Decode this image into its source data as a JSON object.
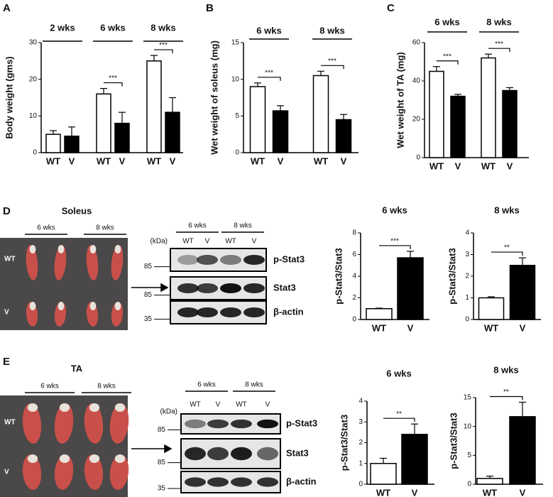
{
  "figure": {
    "panels": [
      "A",
      "B",
      "C",
      "D",
      "E"
    ],
    "photos": [
      {
        "title": "Soleus",
        "groups": [
          "6 wks",
          "8 wks"
        ],
        "rows": [
          "WT",
          "V"
        ]
      },
      {
        "title": "TA",
        "groups": [
          "6 wks",
          "8 wks"
        ],
        "rows": [
          "WT",
          "V"
        ]
      }
    ],
    "blots": [
      {
        "unit": "(kDa)",
        "groups": [
          "6 wks",
          "8 wks"
        ],
        "lanes": [
          "WT",
          "V",
          "WT",
          "V"
        ],
        "bands": [
          "p-Stat3",
          "Stat3",
          "β-actin"
        ],
        "markers": [
          "85",
          "85",
          "35"
        ]
      },
      {
        "unit": "(kDa)",
        "groups": [
          "6 wks",
          "8 wks"
        ],
        "lanes": [
          "WT",
          "V",
          "WT",
          "V"
        ],
        "bands": [
          "p-Stat3",
          "Stat3",
          "β-actin"
        ],
        "markers": [
          "85",
          "85",
          "35"
        ]
      }
    ]
  },
  "chart_data": [
    {
      "type": "bar",
      "ylabel": "Body weight (gms)",
      "groups": [
        "2 wks",
        "6 wks",
        "8 wks"
      ],
      "categories": [
        "WT",
        "V",
        "WT",
        "V",
        "WT",
        "V"
      ],
      "values": [
        5,
        4.5,
        16,
        8,
        25,
        11
      ],
      "errors": [
        1,
        2.5,
        1.5,
        3,
        1.5,
        4
      ],
      "colors": [
        "#ffffff",
        "#000000"
      ],
      "significance": [
        null,
        "***",
        "***"
      ],
      "ylim": [
        0,
        30
      ],
      "yticks": [
        0,
        10,
        20,
        30
      ]
    },
    {
      "type": "bar",
      "ylabel": "Wet weight of soleus (mg)",
      "groups": [
        "6 wks",
        "8 wks"
      ],
      "categories": [
        "WT",
        "V",
        "WT",
        "V"
      ],
      "values": [
        9,
        5.7,
        10.5,
        4.5
      ],
      "errors": [
        0.5,
        0.7,
        0.6,
        0.7
      ],
      "colors": [
        "#ffffff",
        "#000000"
      ],
      "significance": [
        "***",
        "***"
      ],
      "ylim": [
        0,
        15
      ],
      "yticks": [
        0,
        5,
        10,
        15
      ]
    },
    {
      "type": "bar",
      "ylabel": "Wet weight of TA (mg)",
      "groups": [
        "6 wks",
        "8 wks"
      ],
      "categories": [
        "WT",
        "V",
        "WT",
        "V"
      ],
      "values": [
        45,
        32,
        52,
        35
      ],
      "errors": [
        2.5,
        1,
        2,
        1.5
      ],
      "colors": [
        "#ffffff",
        "#000000"
      ],
      "significance": [
        "***",
        "***"
      ],
      "ylim": [
        0,
        60
      ],
      "yticks": [
        0,
        20,
        40,
        60
      ]
    },
    {
      "type": "bar",
      "title": "6 wks",
      "ylabel": "p-Stat3/Stat3",
      "categories": [
        "WT",
        "V"
      ],
      "values": [
        1,
        5.7
      ],
      "errors": [
        0.05,
        0.6
      ],
      "colors": [
        "#ffffff",
        "#000000"
      ],
      "significance": [
        "***"
      ],
      "ylim": [
        0,
        8
      ],
      "yticks": [
        0,
        2,
        4,
        6,
        8
      ]
    },
    {
      "type": "bar",
      "title": "8 wks",
      "ylabel": "p-Stat3/Stat3",
      "categories": [
        "WT",
        "V"
      ],
      "values": [
        1,
        2.5
      ],
      "errors": [
        0.05,
        0.35
      ],
      "colors": [
        "#ffffff",
        "#000000"
      ],
      "significance": [
        "**"
      ],
      "ylim": [
        0,
        4
      ],
      "yticks": [
        0,
        1,
        2,
        3,
        4
      ]
    },
    {
      "type": "bar",
      "title": "6 wks",
      "ylabel": "p-Stat3/Stat3",
      "categories": [
        "WT",
        "V"
      ],
      "values": [
        1,
        2.4
      ],
      "errors": [
        0.25,
        0.5
      ],
      "colors": [
        "#ffffff",
        "#000000"
      ],
      "significance": [
        "**"
      ],
      "ylim": [
        0,
        4
      ],
      "yticks": [
        0,
        1,
        2,
        3,
        4
      ]
    },
    {
      "type": "bar",
      "title": "8 wks",
      "ylabel": "p-Stat3/Stat3",
      "categories": [
        "WT",
        "V"
      ],
      "values": [
        1,
        11.7
      ],
      "errors": [
        0.4,
        2.5
      ],
      "colors": [
        "#ffffff",
        "#000000"
      ],
      "significance": [
        "**"
      ],
      "ylim": [
        0,
        15
      ],
      "yticks": [
        0,
        5,
        10,
        15
      ]
    }
  ]
}
